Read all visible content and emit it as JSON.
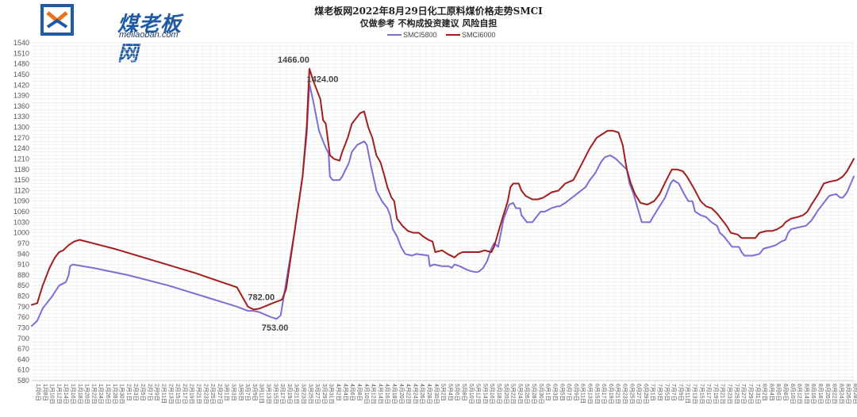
{
  "logo": {
    "text": "煤老板网",
    "sub": "meilaoban.com"
  },
  "chart_data": {
    "type": "line",
    "title": "煤老板网2022年8月29日化工原料煤价格走势SMCI",
    "subtitle": "仅做参考 不构成投资建议 风险自担",
    "ylim": [
      580,
      1540
    ],
    "ytick_step": 10,
    "grid": true,
    "legend_position": "top",
    "x_start": "1月6日",
    "x_end": "8月29日",
    "colors": {
      "SMCI5800": "#7b6fd6",
      "SMCI6000": "#a51c1c"
    },
    "series": [
      {
        "name": "SMCI5800",
        "points": [
          [
            0,
            735
          ],
          [
            4,
            750
          ],
          [
            8,
            785
          ],
          [
            15,
            820
          ],
          [
            20,
            850
          ],
          [
            25,
            860
          ],
          [
            27,
            880
          ],
          [
            28,
            905
          ],
          [
            30,
            910
          ],
          [
            45,
            900
          ],
          [
            70,
            880
          ],
          [
            100,
            850
          ],
          [
            125,
            820
          ],
          [
            150,
            790
          ],
          [
            158,
            778
          ],
          [
            162,
            778
          ],
          [
            166,
            775
          ],
          [
            175,
            760
          ],
          [
            179,
            755
          ],
          [
            182,
            765
          ],
          [
            186,
            860
          ],
          [
            192,
            1000
          ],
          [
            198,
            1160
          ],
          [
            201,
            1280
          ],
          [
            203,
            1424
          ],
          [
            206,
            1370
          ],
          [
            210,
            1290
          ],
          [
            214,
            1250
          ],
          [
            217,
            1225
          ],
          [
            218,
            1160
          ],
          [
            220,
            1150
          ],
          [
            225,
            1150
          ],
          [
            227,
            1160
          ],
          [
            232,
            1200
          ],
          [
            234,
            1230
          ],
          [
            238,
            1250
          ],
          [
            243,
            1260
          ],
          [
            245,
            1250
          ],
          [
            248,
            1190
          ],
          [
            252,
            1120
          ],
          [
            256,
            1090
          ],
          [
            260,
            1070
          ],
          [
            262,
            1050
          ],
          [
            264,
            1010
          ],
          [
            267,
            990
          ],
          [
            270,
            960
          ],
          [
            273,
            940
          ],
          [
            278,
            935
          ],
          [
            281,
            940
          ],
          [
            290,
            935
          ],
          [
            291,
            905
          ],
          [
            294,
            910
          ],
          [
            300,
            905
          ],
          [
            305,
            905
          ],
          [
            307,
            900
          ],
          [
            309,
            910
          ],
          [
            313,
            905
          ],
          [
            318,
            895
          ],
          [
            322,
            890
          ],
          [
            325,
            888
          ],
          [
            327,
            890
          ],
          [
            330,
            900
          ],
          [
            333,
            920
          ],
          [
            336,
            955
          ],
          [
            338,
            970
          ],
          [
            341,
            960
          ],
          [
            345,
            1040
          ],
          [
            349,
            1080
          ],
          [
            352,
            1085
          ],
          [
            354,
            1070
          ],
          [
            357,
            1070
          ],
          [
            358,
            1050
          ],
          [
            362,
            1030
          ],
          [
            366,
            1030
          ],
          [
            370,
            1050
          ],
          [
            372,
            1060
          ],
          [
            375,
            1060
          ],
          [
            380,
            1070
          ],
          [
            384,
            1075
          ],
          [
            386,
            1075
          ],
          [
            390,
            1085
          ],
          [
            395,
            1100
          ],
          [
            400,
            1115
          ],
          [
            405,
            1130
          ],
          [
            408,
            1150
          ],
          [
            412,
            1170
          ],
          [
            416,
            1200
          ],
          [
            419,
            1215
          ],
          [
            423,
            1220
          ],
          [
            427,
            1210
          ],
          [
            431,
            1195
          ],
          [
            435,
            1180
          ],
          [
            437,
            1140
          ],
          [
            440,
            1110
          ],
          [
            443,
            1070
          ],
          [
            446,
            1030
          ],
          [
            452,
            1030
          ],
          [
            455,
            1050
          ],
          [
            459,
            1075
          ],
          [
            463,
            1100
          ],
          [
            465,
            1120
          ],
          [
            467,
            1140
          ],
          [
            469,
            1150
          ],
          [
            473,
            1140
          ],
          [
            477,
            1110
          ],
          [
            480,
            1090
          ],
          [
            483,
            1090
          ],
          [
            485,
            1060
          ],
          [
            489,
            1050
          ],
          [
            493,
            1045
          ],
          [
            497,
            1030
          ],
          [
            501,
            1020
          ],
          [
            503,
            1000
          ],
          [
            506,
            990
          ],
          [
            509,
            975
          ],
          [
            512,
            960
          ],
          [
            517,
            960
          ],
          [
            519,
            945
          ],
          [
            521,
            935
          ],
          [
            527,
            935
          ],
          [
            532,
            940
          ],
          [
            535,
            955
          ],
          [
            540,
            960
          ],
          [
            544,
            965
          ],
          [
            548,
            975
          ],
          [
            551,
            980
          ],
          [
            553,
            1000
          ],
          [
            555,
            1010
          ],
          [
            560,
            1015
          ],
          [
            566,
            1020
          ],
          [
            570,
            1035
          ],
          [
            575,
            1065
          ],
          [
            580,
            1090
          ],
          [
            583,
            1105
          ],
          [
            588,
            1110
          ],
          [
            591,
            1100
          ],
          [
            593,
            1100
          ],
          [
            596,
            1115
          ],
          [
            601,
            1160
          ]
        ]
      },
      {
        "name": "SMCI6000",
        "points": [
          [
            0,
            795
          ],
          [
            4,
            800
          ],
          [
            8,
            850
          ],
          [
            13,
            900
          ],
          [
            17,
            930
          ],
          [
            20,
            945
          ],
          [
            23,
            950
          ],
          [
            27,
            965
          ],
          [
            31,
            975
          ],
          [
            35,
            980
          ],
          [
            60,
            955
          ],
          [
            90,
            920
          ],
          [
            120,
            885
          ],
          [
            150,
            845
          ],
          [
            158,
            790
          ],
          [
            162,
            782
          ],
          [
            166,
            784
          ],
          [
            170,
            790
          ],
          [
            176,
            800
          ],
          [
            183,
            810
          ],
          [
            186,
            840
          ],
          [
            192,
            1000
          ],
          [
            198,
            1160
          ],
          [
            201,
            1300
          ],
          [
            203,
            1466
          ],
          [
            206,
            1430
          ],
          [
            211,
            1380
          ],
          [
            213,
            1320
          ],
          [
            215,
            1310
          ],
          [
            218,
            1220
          ],
          [
            221,
            1210
          ],
          [
            225,
            1205
          ],
          [
            227,
            1230
          ],
          [
            231,
            1270
          ],
          [
            234,
            1310
          ],
          [
            240,
            1340
          ],
          [
            243,
            1345
          ],
          [
            246,
            1300
          ],
          [
            249,
            1270
          ],
          [
            252,
            1220
          ],
          [
            255,
            1200
          ],
          [
            258,
            1160
          ],
          [
            260,
            1130
          ],
          [
            263,
            1100
          ],
          [
            265,
            1090
          ],
          [
            267,
            1040
          ],
          [
            271,
            1020
          ],
          [
            275,
            1005
          ],
          [
            279,
            1000
          ],
          [
            283,
            1000
          ],
          [
            286,
            990
          ],
          [
            290,
            980
          ],
          [
            293,
            975
          ],
          [
            295,
            945
          ],
          [
            300,
            950
          ],
          [
            304,
            940
          ],
          [
            309,
            930
          ],
          [
            312,
            940
          ],
          [
            315,
            945
          ],
          [
            320,
            945
          ],
          [
            327,
            945
          ],
          [
            331,
            950
          ],
          [
            336,
            945
          ],
          [
            338,
            960
          ],
          [
            341,
            1000
          ],
          [
            344,
            1040
          ],
          [
            348,
            1090
          ],
          [
            350,
            1130
          ],
          [
            352,
            1140
          ],
          [
            356,
            1140
          ],
          [
            358,
            1120
          ],
          [
            361,
            1105
          ],
          [
            366,
            1095
          ],
          [
            370,
            1095
          ],
          [
            374,
            1100
          ],
          [
            380,
            1115
          ],
          [
            385,
            1120
          ],
          [
            390,
            1140
          ],
          [
            396,
            1150
          ],
          [
            400,
            1180
          ],
          [
            404,
            1210
          ],
          [
            408,
            1240
          ],
          [
            413,
            1270
          ],
          [
            417,
            1280
          ],
          [
            421,
            1290
          ],
          [
            425,
            1290
          ],
          [
            429,
            1285
          ],
          [
            432,
            1250
          ],
          [
            435,
            1180
          ],
          [
            438,
            1140
          ],
          [
            441,
            1110
          ],
          [
            445,
            1085
          ],
          [
            450,
            1080
          ],
          [
            455,
            1090
          ],
          [
            459,
            1110
          ],
          [
            464,
            1150
          ],
          [
            468,
            1180
          ],
          [
            472,
            1180
          ],
          [
            476,
            1175
          ],
          [
            479,
            1160
          ],
          [
            482,
            1140
          ],
          [
            485,
            1120
          ],
          [
            489,
            1090
          ],
          [
            493,
            1075
          ],
          [
            497,
            1070
          ],
          [
            501,
            1055
          ],
          [
            504,
            1040
          ],
          [
            508,
            1020
          ],
          [
            511,
            1000
          ],
          [
            516,
            995
          ],
          [
            519,
            985
          ],
          [
            529,
            985
          ],
          [
            532,
            1000
          ],
          [
            537,
            1005
          ],
          [
            541,
            1005
          ],
          [
            545,
            1010
          ],
          [
            549,
            1020
          ],
          [
            551,
            1030
          ],
          [
            555,
            1040
          ],
          [
            560,
            1045
          ],
          [
            564,
            1050
          ],
          [
            567,
            1060
          ],
          [
            570,
            1080
          ],
          [
            575,
            1110
          ],
          [
            579,
            1140
          ],
          [
            583,
            1145
          ],
          [
            589,
            1150
          ],
          [
            593,
            1160
          ],
          [
            596,
            1175
          ],
          [
            601,
            1210
          ]
        ]
      }
    ],
    "annotations": [
      {
        "text": "1466.00",
        "x": 203,
        "y": 1466
      },
      {
        "text": "1424.00",
        "x": 208,
        "y": 1424
      },
      {
        "text": "782.00",
        "x": 162,
        "y": 782
      },
      {
        "text": "753.00",
        "x": 179,
        "y": 753
      }
    ],
    "xticks": [
      "1月6日",
      "1月8日",
      "1月10日",
      "1月12日",
      "1月14日",
      "1月16日",
      "1月18日",
      "1月20日",
      "1月22日",
      "1月24日",
      "1月26日",
      "1月28日",
      "1月30日",
      "2月1日",
      "2月3日",
      "2月5日",
      "2月7日",
      "2月9日",
      "2月11日",
      "2月13日",
      "2月15日",
      "2月17日",
      "2月19日",
      "2月21日",
      "2月23日",
      "2月25日",
      "2月27日",
      "3月1日",
      "3月3日",
      "3月5日",
      "3月7日",
      "3月9日",
      "3月11日",
      "3月13日",
      "3月15日",
      "3月17日",
      "3月19日",
      "3月21日",
      "3月23日",
      "3月25日",
      "3月27日",
      "3月29日",
      "3月31日",
      "4月2日",
      "4月4日",
      "4月6日",
      "4月8日",
      "4月10日",
      "4月12日",
      "4月14日",
      "4月16日",
      "4月18日",
      "4月20日",
      "4月22日",
      "4月24日",
      "4月26日",
      "4月28日",
      "4月30日",
      "5月2日",
      "5月4日",
      "5月6日",
      "5月8日",
      "5月10日",
      "5月12日",
      "5月14日",
      "5月16日",
      "5月18日",
      "5月20日",
      "5月22日",
      "5月24日",
      "5月26日",
      "5月28日",
      "5月30日",
      "6月1日",
      "6月3日",
      "6月5日",
      "6月7日",
      "6月9日",
      "6月11日",
      "6月13日",
      "6月15日",
      "6月17日",
      "6月19日",
      "6月21日",
      "6月23日",
      "6月25日",
      "6月27日",
      "6月29日",
      "7月1日",
      "7月3日",
      "7月5日",
      "7月7日",
      "7月9日",
      "7月11日",
      "7月13日",
      "7月15日",
      "7月17日",
      "7月19日",
      "7月21日",
      "7月23日",
      "7月25日",
      "7月27日",
      "7月29日",
      "7月31日",
      "8月2日",
      "8月4日",
      "8月6日",
      "8月8日",
      "8月10日",
      "8月12日",
      "8月14日",
      "8月16日",
      "8月18日",
      "8月20日",
      "8月22日",
      "8月24日",
      "8月26日",
      "8月28日"
    ]
  }
}
